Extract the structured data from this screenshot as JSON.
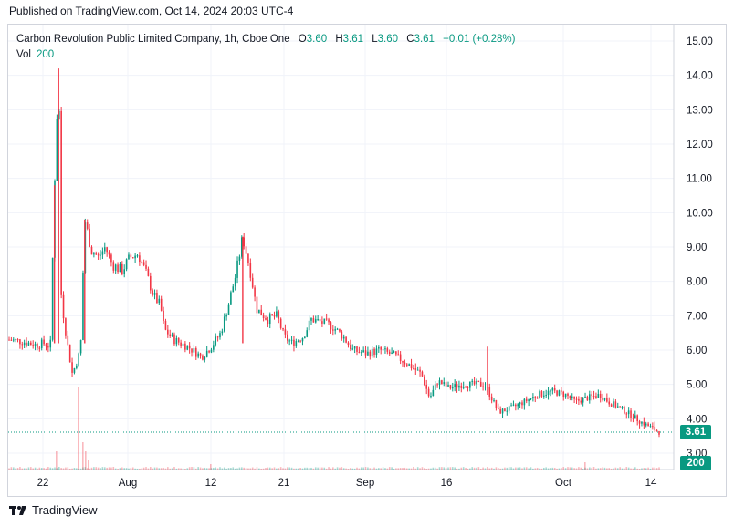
{
  "header": {
    "published": "Published on TradingView.com, Oct 14, 2024 20:03 UTC-4"
  },
  "legend": {
    "symbol": "Carbon Revolution Public Limited Company, 1h, Cboe One",
    "o_label": "O",
    "o_value": "3.60",
    "h_label": "H",
    "h_value": "3.61",
    "l_label": "L",
    "l_value": "3.60",
    "c_label": "C",
    "c_value": "3.61",
    "change": "+0.01 (+0.28%)",
    "vol_label": "Vol",
    "vol_value": "200"
  },
  "badges": {
    "price": "3.61",
    "volume": "200"
  },
  "brand": {
    "name": "TradingView",
    "logo_icon": "tradingview-logo-icon"
  },
  "colors": {
    "up": "#089981",
    "down": "#f23645",
    "grid": "#f0f3fa",
    "price_line": "#089981"
  },
  "chart_data": {
    "type": "candlestick",
    "y_axis": {
      "ticks": [
        "15.00",
        "14.00",
        "13.00",
        "12.00",
        "11.00",
        "10.00",
        "9.00",
        "8.00",
        "7.00",
        "6.00",
        "5.00",
        "4.00",
        "3.00"
      ],
      "ylim": [
        2.6,
        15.3
      ]
    },
    "x_axis": {
      "ticks": [
        "22",
        "Aug",
        "12",
        "21",
        "Sep",
        "16",
        "Oct",
        "14"
      ]
    },
    "grid": true,
    "last_price": 3.61,
    "series": [
      {
        "x": 0.0,
        "y": 6.3
      },
      {
        "x": 1.0,
        "y": 6.25
      },
      {
        "x": 2.0,
        "y": 6.15
      },
      {
        "x": 2.5,
        "y": 6.2
      },
      {
        "x": 3.0,
        "y": 6.1
      },
      {
        "x": 3.3,
        "y": 10.8
      },
      {
        "x": 3.6,
        "y": 14.2
      },
      {
        "x": 3.8,
        "y": 7.5
      },
      {
        "x": 4.2,
        "y": 6.3
      },
      {
        "x": 4.6,
        "y": 5.3
      },
      {
        "x": 5.2,
        "y": 6.0
      },
      {
        "x": 5.5,
        "y": 9.8
      },
      {
        "x": 6.0,
        "y": 8.9
      },
      {
        "x": 6.5,
        "y": 8.7
      },
      {
        "x": 7.0,
        "y": 9.0
      },
      {
        "x": 7.5,
        "y": 8.5
      },
      {
        "x": 8.2,
        "y": 8.3
      },
      {
        "x": 8.8,
        "y": 8.7
      },
      {
        "x": 9.4,
        "y": 8.8
      },
      {
        "x": 10.0,
        "y": 8.2
      },
      {
        "x": 10.5,
        "y": 7.6
      },
      {
        "x": 11.0,
        "y": 7.3
      },
      {
        "x": 11.3,
        "y": 6.6
      },
      {
        "x": 12.0,
        "y": 6.3
      },
      {
        "x": 13.0,
        "y": 6.1
      },
      {
        "x": 14.0,
        "y": 5.8
      },
      {
        "x": 14.7,
        "y": 6.1
      },
      {
        "x": 15.4,
        "y": 6.5
      },
      {
        "x": 16.0,
        "y": 7.4
      },
      {
        "x": 16.5,
        "y": 8.2
      },
      {
        "x": 17.0,
        "y": 9.3
      },
      {
        "x": 17.6,
        "y": 8.2
      },
      {
        "x": 18.0,
        "y": 7.2
      },
      {
        "x": 18.8,
        "y": 6.9
      },
      {
        "x": 19.5,
        "y": 7.0
      },
      {
        "x": 20.0,
        "y": 6.4
      },
      {
        "x": 20.6,
        "y": 6.2
      },
      {
        "x": 21.4,
        "y": 6.4
      },
      {
        "x": 22.0,
        "y": 6.9
      },
      {
        "x": 22.8,
        "y": 6.8
      },
      {
        "x": 23.5,
        "y": 6.7
      },
      {
        "x": 24.3,
        "y": 6.4
      },
      {
        "x": 25.0,
        "y": 6.0
      },
      {
        "x": 26.0,
        "y": 5.9
      },
      {
        "x": 27.0,
        "y": 6.0
      },
      {
        "x": 28.0,
        "y": 5.85
      },
      {
        "x": 29.0,
        "y": 5.6
      },
      {
        "x": 30.0,
        "y": 5.3
      },
      {
        "x": 30.6,
        "y": 4.6
      },
      {
        "x": 31.2,
        "y": 5.1
      },
      {
        "x": 32.0,
        "y": 4.9
      },
      {
        "x": 33.0,
        "y": 5.0
      },
      {
        "x": 34.0,
        "y": 5.0
      },
      {
        "x": 34.6,
        "y": 5.0
      },
      {
        "x": 35.0,
        "y": 4.7
      },
      {
        "x": 35.6,
        "y": 4.2
      },
      {
        "x": 36.5,
        "y": 4.3
      },
      {
        "x": 37.5,
        "y": 4.5
      },
      {
        "x": 38.5,
        "y": 4.7
      },
      {
        "x": 39.5,
        "y": 4.8
      },
      {
        "x": 40.5,
        "y": 4.7
      },
      {
        "x": 41.2,
        "y": 4.5
      },
      {
        "x": 42.0,
        "y": 4.6
      },
      {
        "x": 43.0,
        "y": 4.7
      },
      {
        "x": 43.6,
        "y": 4.5
      },
      {
        "x": 44.5,
        "y": 4.3
      },
      {
        "x": 45.3,
        "y": 4.1
      },
      {
        "x": 46.0,
        "y": 3.9
      },
      {
        "x": 46.7,
        "y": 3.75
      },
      {
        "x": 47.3,
        "y": 3.61
      }
    ],
    "volume": {
      "last": 200
    }
  }
}
